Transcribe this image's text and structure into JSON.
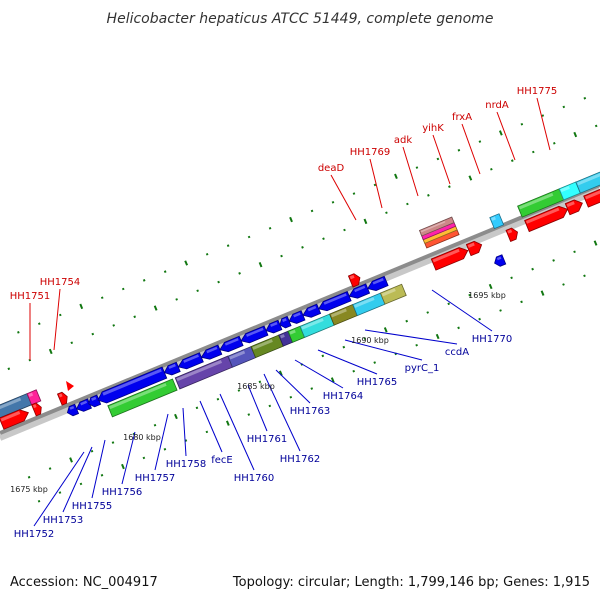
{
  "title": "Helicobacter hepaticus ATCC 51449, complete genome",
  "footer": {
    "accession": "Accession: NC_004917",
    "summary": "Topology: circular; Length: 1,799,146 bp; Genes: 1,915"
  },
  "colors": {
    "forward_label": "#cc0000",
    "reverse_label": "#000099",
    "backbone": "#8c8c8c",
    "tick": "#117711",
    "leader_forward": "#dd0000",
    "leader_reverse": "#0000cc"
  },
  "kbp_labels": [
    "1675 kbp",
    "1680 kbp",
    "1685 kbp",
    "1690 kbp",
    "1695 kbp"
  ],
  "forward_labels": [
    "HH1751",
    "HH1754",
    "deaD",
    "HH1769",
    "adk",
    "yihK",
    "frxA",
    "nrdA",
    "HH1775"
  ],
  "reverse_labels": [
    "HH1752",
    "HH1753",
    "HH1755",
    "HH1756",
    "HH1757",
    "HH1758",
    "fecE",
    "HH1760",
    "HH1761",
    "HH1762",
    "HH1763",
    "HH1764",
    "HH1765",
    "pyrC_1",
    "ccdA",
    "HH1770"
  ]
}
